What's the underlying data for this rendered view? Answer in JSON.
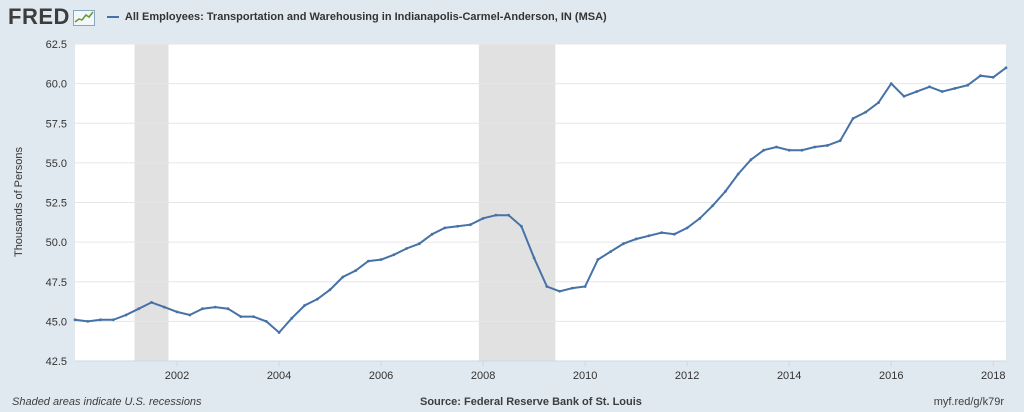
{
  "header": {
    "logo_text": "FRED",
    "logo_icon": "fred-graph-icon",
    "series_title": "All Employees: Transportation and Warehousing in Indianapolis-Carmel-Anderson, IN (MSA)"
  },
  "footer": {
    "recession_note": "Shaded areas indicate U.S. recessions",
    "source": "Source: Federal Reserve Bank of St. Louis",
    "short_url": "myf.red/g/k79r"
  },
  "colors": {
    "line": "#4572a7",
    "recession_shade": "#e1e1e1",
    "plot_background": "#ffffff",
    "frame_background": "#e1e9f0",
    "gridline": "#e6e6e6"
  },
  "chart_data": {
    "type": "line",
    "title": "All Employees: Transportation and Warehousing in Indianapolis-Carmel-Anderson, IN (MSA)",
    "ylabel": "Thousands of Persons",
    "xlabel": "",
    "grid": "horizontal",
    "ylim": [
      42.5,
      62.5
    ],
    "xlim": [
      "2000-01",
      "2018-04"
    ],
    "y_ticks": [
      "42.5",
      "45.0",
      "47.5",
      "50.0",
      "52.5",
      "55.0",
      "57.5",
      "60.0",
      "62.5"
    ],
    "x_ticks": [
      "2002",
      "2004",
      "2006",
      "2008",
      "2010",
      "2012",
      "2014",
      "2016",
      "2018"
    ],
    "recessions": [
      {
        "start": "2001-03",
        "end": "2001-11"
      },
      {
        "start": "2007-12",
        "end": "2009-06"
      }
    ],
    "series": [
      {
        "name": "All Employees: Transportation and Warehousing in Indianapolis-Carmel-Anderson, IN (MSA)",
        "x": [
          "2000-01",
          "2000-04",
          "2000-07",
          "2000-10",
          "2001-01",
          "2001-04",
          "2001-07",
          "2001-10",
          "2002-01",
          "2002-04",
          "2002-07",
          "2002-10",
          "2003-01",
          "2003-04",
          "2003-07",
          "2003-10",
          "2004-01",
          "2004-04",
          "2004-07",
          "2004-10",
          "2005-01",
          "2005-04",
          "2005-07",
          "2005-10",
          "2006-01",
          "2006-04",
          "2006-07",
          "2006-10",
          "2007-01",
          "2007-04",
          "2007-07",
          "2007-10",
          "2008-01",
          "2008-04",
          "2008-07",
          "2008-10",
          "2009-01",
          "2009-04",
          "2009-07",
          "2009-10",
          "2010-01",
          "2010-04",
          "2010-07",
          "2010-10",
          "2011-01",
          "2011-04",
          "2011-07",
          "2011-10",
          "2012-01",
          "2012-04",
          "2012-07",
          "2012-10",
          "2013-01",
          "2013-04",
          "2013-07",
          "2013-10",
          "2014-01",
          "2014-04",
          "2014-07",
          "2014-10",
          "2015-01",
          "2015-04",
          "2015-07",
          "2015-10",
          "2016-01",
          "2016-04",
          "2016-07",
          "2016-10",
          "2017-01",
          "2017-04",
          "2017-07",
          "2017-10",
          "2018-01",
          "2018-04"
        ],
        "values": [
          45.1,
          45.0,
          45.1,
          45.1,
          45.4,
          45.8,
          46.2,
          45.9,
          45.6,
          45.4,
          45.8,
          45.9,
          45.8,
          45.3,
          45.3,
          45.0,
          44.3,
          45.2,
          46.0,
          46.4,
          47.0,
          47.8,
          48.2,
          48.8,
          48.9,
          49.2,
          49.6,
          49.9,
          50.5,
          50.9,
          51.0,
          51.1,
          51.5,
          51.7,
          51.7,
          51.0,
          49.0,
          47.2,
          46.9,
          47.1,
          47.2,
          48.9,
          49.4,
          49.9,
          50.2,
          50.4,
          50.6,
          50.5,
          50.9,
          51.5,
          52.3,
          53.2,
          54.3,
          55.2,
          55.8,
          56.0,
          55.8,
          55.8,
          56.0,
          56.1,
          56.4,
          57.8,
          58.2,
          58.8,
          60.0,
          59.2,
          59.5,
          59.8,
          59.5,
          59.7,
          59.9,
          60.5,
          60.4,
          61.0
        ]
      }
    ]
  }
}
